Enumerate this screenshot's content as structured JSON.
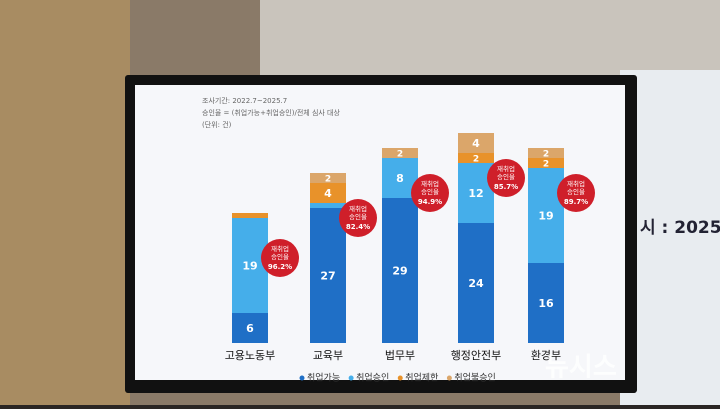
{
  "chart_data": {
    "type": "stacked-bar",
    "notes": [
      "조사기간: 2022.7~2025.7",
      "승인율 = (취업가능+취업승인)/전체 심사 대상",
      "(단위: 건)"
    ],
    "categories": [
      "고용노동부",
      "교육부",
      "법무부",
      "행정안전부",
      "환경부"
    ],
    "series": [
      {
        "name": "취업가능",
        "color": "#1f6fc6",
        "values": [
          6,
          27,
          29,
          24,
          16
        ]
      },
      {
        "name": "취업승인",
        "color": "#45aeea",
        "values": [
          19,
          1,
          8,
          12,
          19
        ]
      },
      {
        "name": "취업제한",
        "color": "#e8922a",
        "values": [
          1,
          4,
          null,
          2,
          2
        ]
      },
      {
        "name": "취업불승인",
        "color": "#dba66a",
        "values": [
          null,
          2,
          2,
          4,
          2
        ]
      }
    ],
    "rate_title": [
      "재취업",
      "승인율"
    ],
    "rates": [
      96.2,
      82.4,
      94.9,
      85.7,
      89.7
    ],
    "rate_labels": [
      "96.2%",
      "82.4%",
      "94.9%",
      "85.7%",
      "89.7%"
    ],
    "rate_color": "#cf1f2a",
    "background_text": "시 : 2025.",
    "watermark": "뉴시스"
  }
}
